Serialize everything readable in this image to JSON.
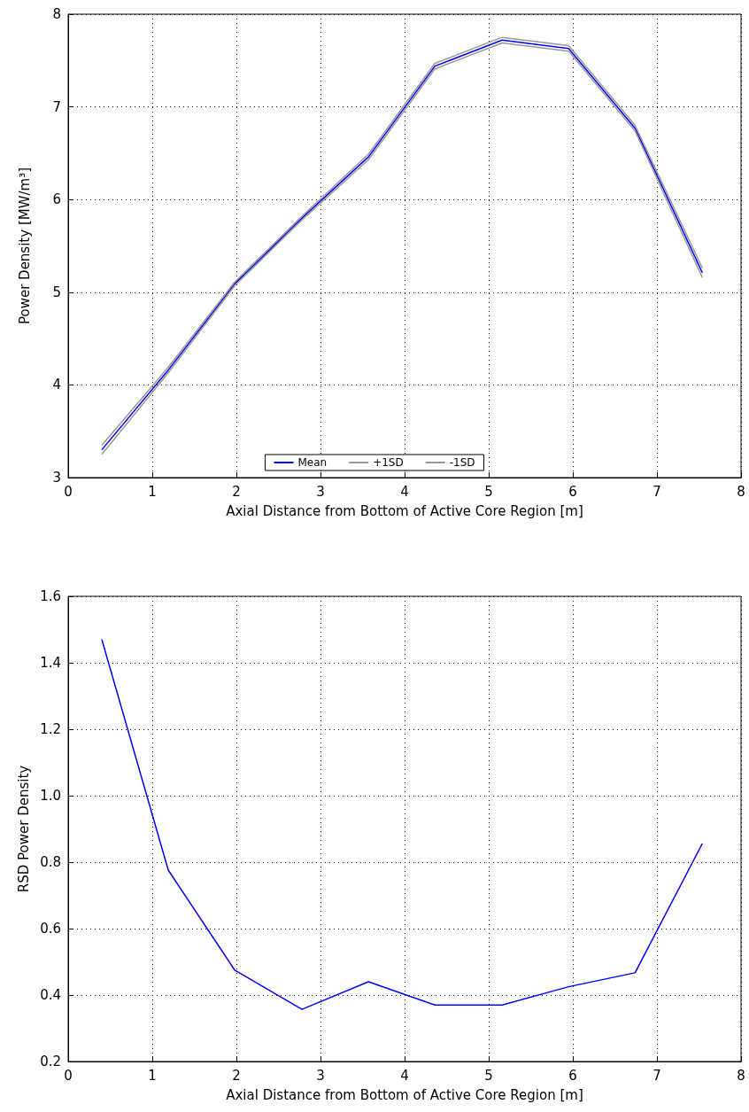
{
  "chart_data": [
    {
      "type": "line",
      "xlabel": "Axial Distance from Bottom of Active Core Region [m]",
      "ylabel": "Power Density [MW/m³]",
      "x": [
        0.4,
        1.19,
        1.98,
        2.78,
        3.57,
        4.36,
        5.16,
        5.95,
        6.74,
        7.54
      ],
      "series": [
        {
          "name": "Mean",
          "color": "#0000ff",
          "values": [
            3.3,
            4.16,
            5.09,
            5.8,
            6.46,
            7.44,
            7.72,
            7.63,
            6.77,
            5.21
          ]
        },
        {
          "name": "+1SD",
          "color": "#999999",
          "values": [
            3.35,
            4.19,
            5.11,
            5.82,
            6.49,
            7.47,
            7.75,
            7.66,
            6.8,
            5.26
          ]
        },
        {
          "name": "-1SD",
          "color": "#999999",
          "values": [
            3.25,
            4.13,
            5.07,
            5.78,
            6.43,
            7.41,
            7.69,
            7.6,
            6.74,
            5.16
          ]
        }
      ],
      "xlim": [
        0,
        8
      ],
      "xticks": [
        0,
        1,
        2,
        3,
        4,
        5,
        6,
        7,
        8
      ],
      "ylim": [
        3,
        8
      ],
      "yticks": [
        3,
        4,
        5,
        6,
        7,
        8
      ],
      "grid": true,
      "legend": "bottom",
      "marker": "none",
      "line_style": "solid"
    },
    {
      "type": "line",
      "xlabel": "Axial Distance from Bottom of Active Core Region [m]",
      "ylabel": "RSD Power Density",
      "x": [
        0.4,
        1.19,
        1.98,
        2.78,
        3.57,
        4.36,
        5.16,
        5.95,
        6.74,
        7.54
      ],
      "series": [
        {
          "color": "#0000ff",
          "values": [
            1.47,
            0.776,
            0.475,
            0.357,
            0.44,
            0.37,
            0.37,
            0.425,
            0.467,
            0.856
          ]
        }
      ],
      "xlim": [
        0,
        8
      ],
      "xticks": [
        0,
        1,
        2,
        3,
        4,
        5,
        6,
        7,
        8
      ],
      "ylim": [
        0.2,
        1.6
      ],
      "yticks": [
        0.2,
        0.4,
        0.6,
        0.8,
        {
          "value": 1,
          "label": "1.0"
        },
        1.2,
        1.4,
        1.6
      ],
      "grid": true,
      "legend": false,
      "marker": "none",
      "line_style": "solid"
    }
  ]
}
